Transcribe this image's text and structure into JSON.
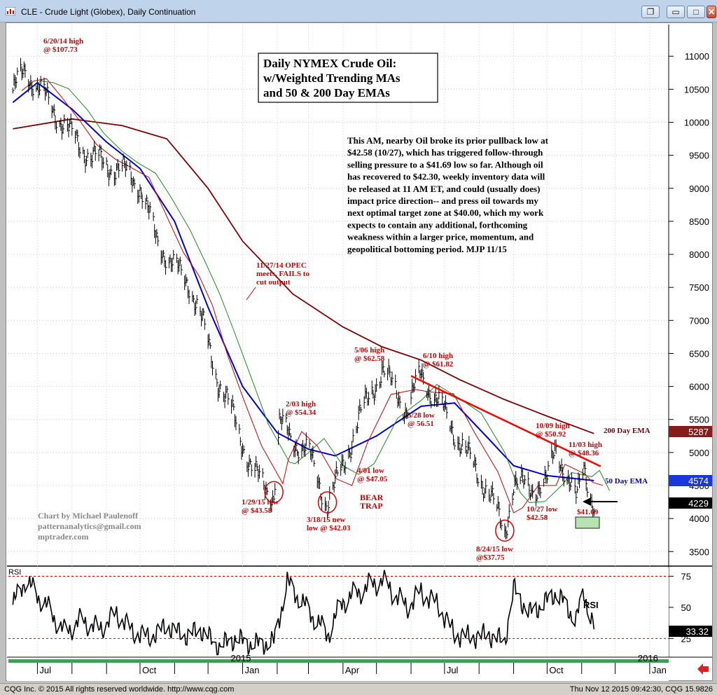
{
  "window": {
    "title": "CLE - Crude Light (Globex), Daily Continuation",
    "buttons": {
      "restore": "❐",
      "minimize": "▭",
      "maximize": "□",
      "close": "✕"
    }
  },
  "chart_data": {
    "type": "line",
    "symbol": "CLE",
    "title_box": [
      "Daily NYMEX Crude Oil:",
      "w/Weighted Trending MAs",
      "and 50 & 200 Day EMAs"
    ],
    "commentary": [
      "This AM, nearby Oil broke its prior pullback low at",
      "$42.58 (10/27), which has triggered follow-through",
      "selling pressure to a $41.69 low so far. Although oil",
      "has recovered to $42.30, weekly inventory data will",
      "be released at 11 AM ET, and could (usually does)",
      "impact price direction-- and press oil towards my",
      "next optimal target zone at $40.00, which my work",
      "expects to contain any additional, forthcoming",
      "weakness within a larger price, momentum, and",
      "geopolitical bottoming period.  MJP 11/15"
    ],
    "y_ticks": [
      "11000",
      "10500",
      "10000",
      "9500",
      "9000",
      "8500",
      "8000",
      "7500",
      "7000",
      "6500",
      "6000",
      "5500",
      "5000",
      "4500",
      "4000",
      "3500"
    ],
    "y_values": [
      11000,
      10500,
      10000,
      9500,
      9000,
      8500,
      8000,
      7500,
      7000,
      6500,
      6000,
      5500,
      5000,
      4500,
      4000,
      3500
    ],
    "ylim": [
      3280,
      11480
    ],
    "x_ticks": [
      "Jul",
      "Oct",
      "Jan",
      "Apr",
      "Jul",
      "Oct",
      "Jan"
    ],
    "year_labels": [
      "2015",
      "2016"
    ],
    "price_series": [
      {
        "d": "2014-06-09",
        "v": 10480
      },
      {
        "d": "2014-06-20",
        "v": 10773
      },
      {
        "d": "2014-07-01",
        "v": 10550
      },
      {
        "d": "2014-07-15",
        "v": 10200
      },
      {
        "d": "2014-08-01",
        "v": 9800
      },
      {
        "d": "2014-08-15",
        "v": 9530
      },
      {
        "d": "2014-09-01",
        "v": 9350
      },
      {
        "d": "2014-09-15",
        "v": 9280
      },
      {
        "d": "2014-10-01",
        "v": 9050
      },
      {
        "d": "2014-10-15",
        "v": 8250
      },
      {
        "d": "2014-11-01",
        "v": 7800
      },
      {
        "d": "2014-11-15",
        "v": 7550
      },
      {
        "d": "2014-11-27",
        "v": 6900
      },
      {
        "d": "2014-12-10",
        "v": 6100
      },
      {
        "d": "2014-12-25",
        "v": 5500
      },
      {
        "d": "2015-01-10",
        "v": 4700
      },
      {
        "d": "2015-01-29",
        "v": 4358
      },
      {
        "d": "2015-02-03",
        "v": 5434
      },
      {
        "d": "2015-02-15",
        "v": 5200
      },
      {
        "d": "2015-03-01",
        "v": 5000
      },
      {
        "d": "2015-03-18",
        "v": 4203
      },
      {
        "d": "2015-04-01",
        "v": 4800
      },
      {
        "d": "2015-04-15",
        "v": 5500
      },
      {
        "d": "2015-05-06",
        "v": 6258
      },
      {
        "d": "2015-05-28",
        "v": 5651
      },
      {
        "d": "2015-06-10",
        "v": 6182
      },
      {
        "d": "2015-07-01",
        "v": 5600
      },
      {
        "d": "2015-07-20",
        "v": 5000
      },
      {
        "d": "2015-08-10",
        "v": 4400
      },
      {
        "d": "2015-08-24",
        "v": 3775
      },
      {
        "d": "2015-09-01",
        "v": 4550
      },
      {
        "d": "2015-09-15",
        "v": 4450
      },
      {
        "d": "2015-10-01",
        "v": 4550
      },
      {
        "d": "2015-10-09",
        "v": 5092
      },
      {
        "d": "2015-10-27",
        "v": 4258
      },
      {
        "d": "2015-11-03",
        "v": 4836
      },
      {
        "d": "2015-11-12",
        "v": 4169
      }
    ],
    "ema50_series": [
      {
        "d": "2014-06-09",
        "v": 10300
      },
      {
        "d": "2014-07-01",
        "v": 10600
      },
      {
        "d": "2014-08-01",
        "v": 10200
      },
      {
        "d": "2014-09-01",
        "v": 9700
      },
      {
        "d": "2014-10-01",
        "v": 9300
      },
      {
        "d": "2014-11-01",
        "v": 8500
      },
      {
        "d": "2014-12-01",
        "v": 7200
      },
      {
        "d": "2015-01-01",
        "v": 6000
      },
      {
        "d": "2015-02-01",
        "v": 5300
      },
      {
        "d": "2015-03-01",
        "v": 5050
      },
      {
        "d": "2015-03-25",
        "v": 4950
      },
      {
        "d": "2015-05-01",
        "v": 5250
      },
      {
        "d": "2015-06-10",
        "v": 5700
      },
      {
        "d": "2015-07-10",
        "v": 5750
      },
      {
        "d": "2015-08-10",
        "v": 5200
      },
      {
        "d": "2015-09-01",
        "v": 4800
      },
      {
        "d": "2015-10-01",
        "v": 4650
      },
      {
        "d": "2015-11-12",
        "v": 4574
      }
    ],
    "ema200_series": [
      {
        "d": "2014-06-09",
        "v": 9900
      },
      {
        "d": "2014-08-01",
        "v": 10050
      },
      {
        "d": "2014-09-15",
        "v": 9950
      },
      {
        "d": "2014-10-25",
        "v": 9750
      },
      {
        "d": "2014-12-01",
        "v": 9000
      },
      {
        "d": "2015-01-01",
        "v": 8200
      },
      {
        "d": "2015-02-15",
        "v": 7400
      },
      {
        "d": "2015-04-01",
        "v": 6900
      },
      {
        "d": "2015-05-06",
        "v": 6600
      },
      {
        "d": "2015-06-10",
        "v": 6400
      },
      {
        "d": "2015-07-15",
        "v": 6100
      },
      {
        "d": "2015-08-24",
        "v": 5800
      },
      {
        "d": "2015-10-01",
        "v": 5550
      },
      {
        "d": "2015-11-12",
        "v": 5287
      }
    ],
    "downtrend_line": {
      "from": {
        "d": "2015-06-01",
        "v": 6160
      },
      "to": {
        "d": "2015-11-18",
        "v": 4790
      }
    },
    "annotations": [
      {
        "id": "jun20",
        "lines": [
          "6/20/14 high",
          "@ $107.73"
        ]
      },
      {
        "id": "opec",
        "lines": [
          "11/27/14 OPEC",
          "meets, FAILS to",
          "cut output"
        ]
      },
      {
        "id": "feb03",
        "lines": [
          "2/03 high",
          "@ $54.34"
        ]
      },
      {
        "id": "jan29",
        "lines": [
          "1/29/15 low",
          "@ $43.58"
        ]
      },
      {
        "id": "mar18",
        "lines": [
          "3/18/15 new",
          "low @ $42.03"
        ]
      },
      {
        "id": "bear",
        "lines": [
          "BEAR",
          "TRAP"
        ]
      },
      {
        "id": "apr01",
        "lines": [
          "4/01 low",
          "@ $47.05"
        ]
      },
      {
        "id": "may06",
        "lines": [
          "5/06 high",
          "@ $62.58"
        ]
      },
      {
        "id": "jun10",
        "lines": [
          "6/10 high",
          "@ $61.82"
        ]
      },
      {
        "id": "may28",
        "lines": [
          "5/28 low",
          "@ 56.51"
        ]
      },
      {
        "id": "aug24",
        "lines": [
          "8/24/15 low",
          "@$37.75"
        ]
      },
      {
        "id": "oct09",
        "lines": [
          "10/09 high",
          "@ $50.92"
        ]
      },
      {
        "id": "nov03",
        "lines": [
          "11/03 high",
          "@ $48.36"
        ]
      },
      {
        "id": "oct27",
        "lines": [
          "10/27 low",
          "$42.58"
        ]
      },
      {
        "id": "last",
        "lines": [
          "$41.69"
        ]
      }
    ],
    "ema_labels": {
      "ema200": "200 Day EMA",
      "ema50": "50 Day EMA"
    },
    "price_badges": {
      "ema200": "5287",
      "ema50": "4574",
      "last": "4229"
    },
    "credit": [
      "Chart by Michael Paulenoff",
      "patternanalytics@gmail.com",
      "mptrader.com"
    ],
    "rsi": {
      "label": "RSI",
      "panel_label": "RSI",
      "y_ticks": [
        "75",
        "50",
        "25"
      ],
      "y_values": [
        75,
        50,
        25
      ],
      "upper": 75,
      "lower": 25,
      "value_badge": "33.32",
      "series": [
        {
          "d": "2014-06-09",
          "v": 52
        },
        {
          "d": "2014-06-20",
          "v": 72
        },
        {
          "d": "2014-07-10",
          "v": 50
        },
        {
          "d": "2014-07-25",
          "v": 30
        },
        {
          "d": "2014-08-10",
          "v": 40
        },
        {
          "d": "2014-08-25",
          "v": 32
        },
        {
          "d": "2014-09-10",
          "v": 45
        },
        {
          "d": "2014-09-25",
          "v": 30
        },
        {
          "d": "2014-10-10",
          "v": 26
        },
        {
          "d": "2014-10-25",
          "v": 35
        },
        {
          "d": "2014-11-10",
          "v": 27
        },
        {
          "d": "2014-11-25",
          "v": 32
        },
        {
          "d": "2014-12-10",
          "v": 18
        },
        {
          "d": "2014-12-25",
          "v": 25
        },
        {
          "d": "2015-01-10",
          "v": 20
        },
        {
          "d": "2015-01-29",
          "v": 22
        },
        {
          "d": "2015-02-10",
          "v": 70
        },
        {
          "d": "2015-02-25",
          "v": 52
        },
        {
          "d": "2015-03-18",
          "v": 28
        },
        {
          "d": "2015-04-01",
          "v": 55
        },
        {
          "d": "2015-04-20",
          "v": 65
        },
        {
          "d": "2015-05-06",
          "v": 72
        },
        {
          "d": "2015-05-28",
          "v": 50
        },
        {
          "d": "2015-06-10",
          "v": 62
        },
        {
          "d": "2015-06-25",
          "v": 52
        },
        {
          "d": "2015-07-10",
          "v": 28
        },
        {
          "d": "2015-07-25",
          "v": 26
        },
        {
          "d": "2015-08-10",
          "v": 28
        },
        {
          "d": "2015-08-24",
          "v": 22
        },
        {
          "d": "2015-09-01",
          "v": 65
        },
        {
          "d": "2015-09-15",
          "v": 45
        },
        {
          "d": "2015-10-01",
          "v": 55
        },
        {
          "d": "2015-10-09",
          "v": 62
        },
        {
          "d": "2015-10-27",
          "v": 40
        },
        {
          "d": "2015-11-03",
          "v": 62
        },
        {
          "d": "2015-11-12",
          "v": 33.32
        }
      ]
    },
    "colors": {
      "price": "#000000",
      "ema50": "#0000dd",
      "ema200": "#800000",
      "wma_red": "#cc0000",
      "wma_green": "#228822",
      "trend": "#ff0000",
      "annotation": "#cc0000"
    }
  },
  "status": {
    "left": "CQG Inc. © 2015 All rights reserved worldwide. http://www.cqg.com",
    "right": "Thu Nov 12 2015 09:42:30, CQG 15.9826"
  }
}
